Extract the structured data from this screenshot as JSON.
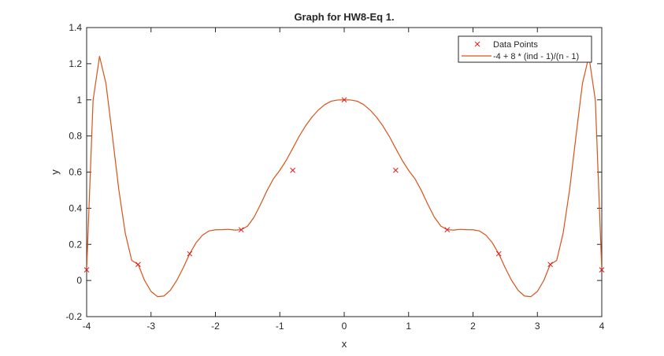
{
  "colors": {
    "curve": "#D95319",
    "markers": "#e41a1c",
    "axes": "#262626",
    "background": "#ffffff"
  },
  "chart_data": {
    "type": "line",
    "title": "Graph for HW8-Eq 1.",
    "xlabel": "x",
    "ylabel": "y",
    "xlim": [
      -4,
      4
    ],
    "ylim": [
      -0.2,
      1.4
    ],
    "x_ticks": [
      -4,
      -3,
      -2,
      -1,
      0,
      1,
      2,
      3,
      4
    ],
    "y_ticks": [
      -0.2,
      0,
      0.2,
      0.4,
      0.6,
      0.8,
      1,
      1.2,
      1.4
    ],
    "x_tick_labels": [
      "-4",
      "-3",
      "-2",
      "-1",
      "0",
      "1",
      "2",
      "3",
      "4"
    ],
    "y_tick_labels": [
      "-0.2",
      "0",
      "0.2",
      "0.4",
      "0.6",
      "0.8",
      "1",
      "1.2",
      "1.4"
    ],
    "grid": false,
    "box": true,
    "legend": {
      "location": "top-right",
      "entries": [
        "Data Points",
        "-4 + 8 * (ind - 1)/(n - 1)"
      ]
    },
    "series": [
      {
        "name": "Data Points",
        "style": "marker",
        "marker": "x",
        "x": [
          -4,
          -3.2,
          -2.4,
          -1.6,
          -0.8,
          0,
          0.8,
          1.6,
          2.4,
          3.2,
          4
        ],
        "y": [
          0.0588,
          0.089,
          0.1479,
          0.2809,
          0.6098,
          1.0,
          0.6098,
          0.2809,
          0.1479,
          0.089,
          0.0588
        ]
      },
      {
        "name": "-4 + 8 * (ind - 1)/(n - 1)",
        "style": "line",
        "x": [
          -4,
          -3.9,
          -3.8,
          -3.7,
          -3.6,
          -3.5,
          -3.4,
          -3.3,
          -3.2,
          -3.1,
          -3.0,
          -2.9,
          -2.8,
          -2.7,
          -2.6,
          -2.5,
          -2.4,
          -2.3,
          -2.2,
          -2.1,
          -2.0,
          -1.9,
          -1.8,
          -1.7,
          -1.6,
          -1.5,
          -1.4,
          -1.3,
          -1.2,
          -1.1,
          -1.0,
          -0.9,
          -0.8,
          -0.7,
          -0.6,
          -0.5,
          -0.4,
          -0.3,
          -0.2,
          -0.1,
          0.0,
          0.1,
          0.2,
          0.3,
          0.4,
          0.5,
          0.6,
          0.7,
          0.8,
          0.9,
          1.0,
          1.1,
          1.2,
          1.3,
          1.4,
          1.5,
          1.6,
          1.7,
          1.8,
          1.9,
          2.0,
          2.1,
          2.2,
          2.3,
          2.4,
          2.5,
          2.6,
          2.7,
          2.8,
          2.9,
          3.0,
          3.1,
          3.2,
          3.3,
          3.4,
          3.5,
          3.6,
          3.7,
          3.8,
          3.9,
          4.0
        ],
        "y": [
          0.0588,
          0.9981,
          1.2407,
          1.0909,
          0.8005,
          0.5014,
          0.2619,
          0.1112,
          0.089,
          0.0001,
          -0.0605,
          -0.0892,
          -0.0861,
          -0.0543,
          0.0005,
          0.0704,
          0.1479,
          0.2092,
          0.2513,
          0.2743,
          0.2806,
          0.2811,
          0.2832,
          0.2791,
          0.2809,
          0.3015,
          0.3505,
          0.4206,
          0.4967,
          0.5625,
          0.6098,
          0.6654,
          0.7311,
          0.7978,
          0.856,
          0.9048,
          0.9443,
          0.9741,
          0.9927,
          0.9991,
          1.0,
          0.9991,
          0.9927,
          0.9741,
          0.9443,
          0.9048,
          0.856,
          0.7978,
          0.7311,
          0.6654,
          0.6098,
          0.5625,
          0.4967,
          0.4206,
          0.3505,
          0.3015,
          0.2809,
          0.2791,
          0.2832,
          0.2811,
          0.2806,
          0.2743,
          0.2513,
          0.2092,
          0.1479,
          0.0704,
          0.0005,
          -0.0543,
          -0.0861,
          -0.0892,
          -0.0605,
          0.0001,
          0.089,
          0.1112,
          0.2619,
          0.5014,
          0.8005,
          1.0909,
          1.2407,
          0.9981,
          0.0588
        ]
      }
    ]
  }
}
